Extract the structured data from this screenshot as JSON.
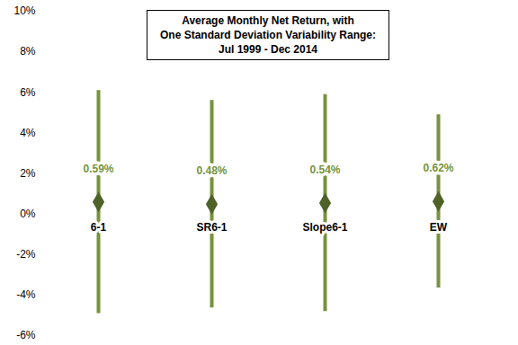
{
  "chart_data": {
    "type": "errorbar",
    "title": "Average Monthly Net Return, with\nOne Standard Deviation Variability Range:\nJul 1999 - Dec 2014",
    "categories": [
      "6-1",
      "SR6-1",
      "Slope6-1",
      "EW"
    ],
    "values": [
      0.59,
      0.48,
      0.54,
      0.62
    ],
    "value_labels": [
      "0.59%",
      "0.48%",
      "0.54%",
      "0.62%"
    ],
    "errors": [
      5.5,
      5.12,
      5.35,
      4.27
    ],
    "color": "#77933c",
    "marker": "diamond",
    "data_labels": true,
    "grid": false,
    "ylim": [
      -6,
      10
    ],
    "yticks": [
      {
        "value": -6,
        "label": "-6%"
      },
      {
        "value": -4,
        "label": "-4%"
      },
      {
        "value": -2,
        "label": "-2%"
      },
      {
        "value": 0,
        "label": "0%"
      },
      {
        "value": 2,
        "label": "2%"
      },
      {
        "value": 4,
        "label": "4%"
      },
      {
        "value": 6,
        "label": "6%"
      },
      {
        "value": 8,
        "label": "8%"
      },
      {
        "value": 10,
        "label": "10%"
      }
    ]
  }
}
